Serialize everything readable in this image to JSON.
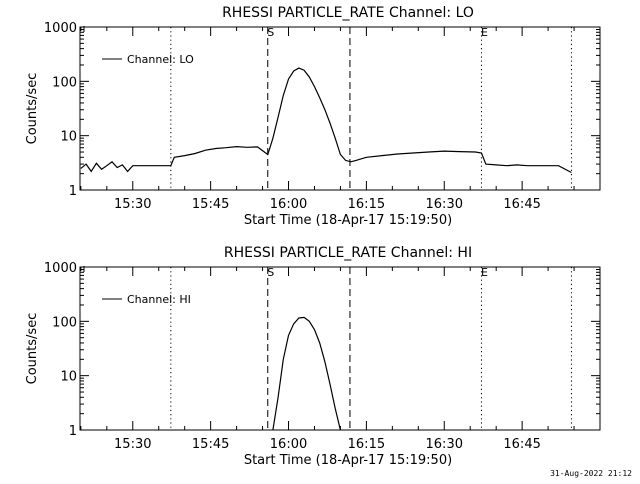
{
  "footer_timestamp": "31-Aug-2022 21:12",
  "chart_data": [
    {
      "type": "line",
      "title": "RHESSI PARTICLE_RATE Channel: LO",
      "xlabel": "Start Time (18-Apr-17 15:19:50)",
      "ylabel": "Counts/sec",
      "legend": "Channel: LO",
      "legend_position": "top-left",
      "y_scale": "log",
      "ylim": [
        1,
        1000
      ],
      "xlim": [
        "15:19:50",
        "17:00:00"
      ],
      "x_ticks": [
        "15:30",
        "15:45",
        "16:00",
        "16:15",
        "16:30",
        "16:45"
      ],
      "y_ticks": [
        "1",
        "10",
        "100",
        "1000"
      ],
      "markers": [
        {
          "label": "",
          "time": "15:37:20",
          "style": "dotted"
        },
        {
          "label": "S",
          "time": "15:56:00",
          "style": "dashed"
        },
        {
          "label": "",
          "time": "16:11:50",
          "style": "dashed"
        },
        {
          "label": "E",
          "time": "16:37:10",
          "style": "dotted"
        },
        {
          "label": "",
          "time": "16:54:30",
          "style": "dotted"
        }
      ],
      "series": [
        {
          "name": "Channel: LO",
          "x": [
            "15:20:00",
            "15:21:00",
            "15:22:00",
            "15:23:00",
            "15:24:00",
            "15:25:00",
            "15:26:00",
            "15:27:00",
            "15:28:00",
            "15:29:00",
            "15:30:00",
            "15:32:00",
            "15:34:00",
            "15:36:00",
            "15:37:20",
            "15:38:00",
            "15:40:00",
            "15:42:00",
            "15:44:00",
            "15:46:00",
            "15:48:00",
            "15:50:00",
            "15:52:00",
            "15:54:00",
            "15:56:00",
            "15:57:00",
            "15:58:00",
            "15:59:00",
            "16:00:00",
            "16:01:00",
            "16:02:00",
            "16:03:00",
            "16:04:00",
            "16:05:00",
            "16:06:00",
            "16:07:00",
            "16:08:00",
            "16:09:00",
            "16:10:00",
            "16:11:00",
            "16:12:00",
            "16:13:00",
            "16:15:00",
            "16:18:00",
            "16:21:00",
            "16:24:00",
            "16:27:00",
            "16:30:00",
            "16:33:00",
            "16:36:00",
            "16:37:10",
            "16:38:00",
            "16:40:00",
            "16:42:00",
            "16:44:00",
            "16:46:00",
            "16:48:00",
            "16:50:00",
            "16:52:00",
            "16:54:30"
          ],
          "y": [
            2.5,
            3.0,
            2.2,
            3.1,
            2.4,
            2.8,
            3.3,
            2.6,
            2.9,
            2.2,
            2.8,
            2.8,
            2.8,
            2.8,
            2.8,
            4.0,
            4.3,
            4.7,
            5.4,
            5.8,
            6.0,
            6.3,
            6.1,
            6.2,
            4.5,
            9,
            22,
            55,
            110,
            155,
            175,
            160,
            120,
            80,
            50,
            30,
            17,
            9,
            4.5,
            3.5,
            3.3,
            3.5,
            4.0,
            4.3,
            4.6,
            4.8,
            5.0,
            5.2,
            5.1,
            5.0,
            4.8,
            3.0,
            2.9,
            2.8,
            2.9,
            2.8,
            2.8,
            2.8,
            2.8,
            2.1
          ]
        }
      ]
    },
    {
      "type": "line",
      "title": "RHESSI PARTICLE_RATE Channel: HI",
      "xlabel": "Start Time (18-Apr-17 15:19:50)",
      "ylabel": "Counts/sec",
      "legend": "Channel: HI",
      "legend_position": "top-left",
      "y_scale": "log",
      "ylim": [
        1,
        1000
      ],
      "xlim": [
        "15:19:50",
        "17:00:00"
      ],
      "x_ticks": [
        "15:30",
        "15:45",
        "16:00",
        "16:15",
        "16:30",
        "16:45"
      ],
      "y_ticks": [
        "1",
        "10",
        "100",
        "1000"
      ],
      "markers": [
        {
          "label": "",
          "time": "15:37:20",
          "style": "dotted"
        },
        {
          "label": "S",
          "time": "15:56:00",
          "style": "dashed"
        },
        {
          "label": "",
          "time": "16:11:50",
          "style": "dashed"
        },
        {
          "label": "E",
          "time": "16:37:10",
          "style": "dotted"
        },
        {
          "label": "",
          "time": "16:54:30",
          "style": "dotted"
        }
      ],
      "series": [
        {
          "name": "Channel: HI",
          "x": [
            "15:57:00",
            "15:58:00",
            "15:59:00",
            "16:00:00",
            "16:01:00",
            "16:02:00",
            "16:03:00",
            "16:04:00",
            "16:05:00",
            "16:06:00",
            "16:07:00",
            "16:08:00",
            "16:09:00",
            "16:10:00"
          ],
          "y": [
            1.0,
            4.0,
            20,
            55,
            90,
            115,
            118,
            100,
            70,
            40,
            18,
            7,
            2.5,
            1.0
          ]
        }
      ]
    }
  ]
}
